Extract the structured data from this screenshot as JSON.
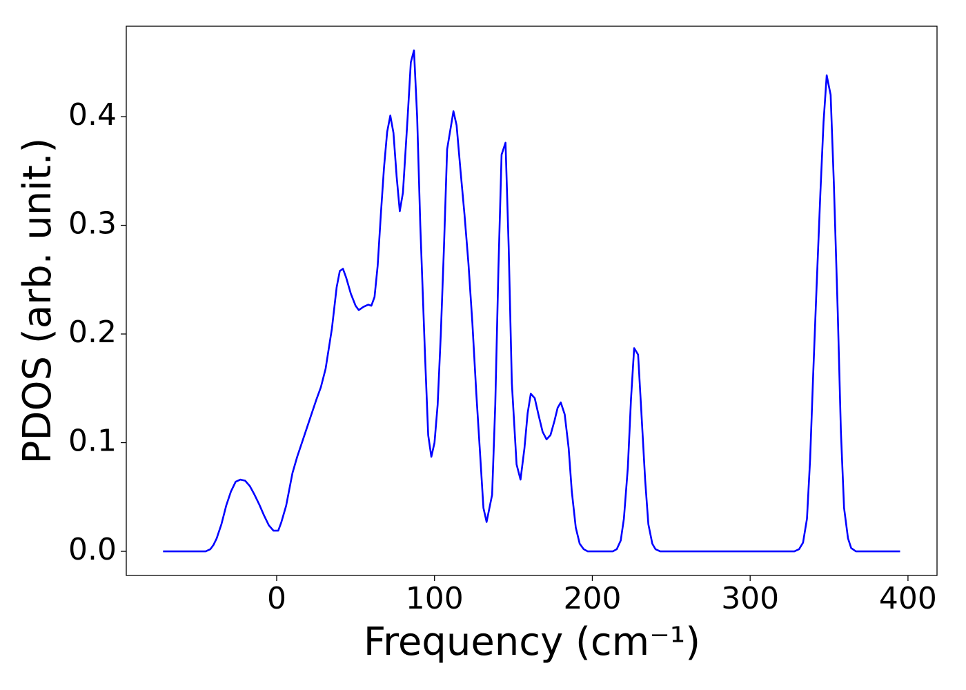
{
  "chart_data": {
    "type": "line",
    "xlabel": "Frequency (cm⁻¹)",
    "ylabel": "PDOS (arb. unit.)",
    "color": "#0000ff",
    "xlim": [
      -95.3,
      418.4
    ],
    "ylim": [
      -0.0222,
      0.4832
    ],
    "xticks": [
      0,
      100,
      200,
      300,
      400
    ],
    "yticks": [
      {
        "value": 0,
        "label": "0.0"
      },
      0.1,
      0.2,
      0.3,
      0.4
    ],
    "grid": false,
    "x": [
      -72,
      -45,
      -42,
      -40,
      -38,
      -35,
      -32,
      -29,
      -26,
      -23,
      -20,
      -17,
      -14,
      -11,
      -8,
      -5,
      -2,
      1,
      3,
      6,
      10,
      13,
      16,
      19,
      22,
      25,
      28,
      31,
      35,
      38,
      40,
      42,
      44,
      47,
      50,
      52,
      55,
      58,
      60,
      62,
      64,
      66,
      68,
      70,
      72,
      74,
      76,
      78,
      80,
      83,
      85,
      87,
      89,
      91,
      94,
      96,
      98,
      100,
      102,
      104,
      106,
      108,
      112,
      114,
      116.5,
      119,
      121.5,
      124,
      126.5,
      129,
      131,
      133,
      136.5,
      138.5,
      140.5,
      142.5,
      145,
      147,
      149,
      152,
      154.5,
      157,
      159,
      161,
      163.5,
      166,
      168.5,
      171,
      173.5,
      176,
      178,
      180,
      182.5,
      185,
      187,
      189.5,
      192,
      194.5,
      197,
      213,
      215.5,
      218,
      220,
      222.5,
      224.5,
      226.5,
      229,
      231,
      233.5,
      235.5,
      238,
      240,
      243,
      328,
      331,
      333.5,
      336,
      338,
      340,
      342,
      344.5,
      346.5,
      348.5,
      351,
      353,
      355.5,
      357.5,
      359.5,
      362,
      364,
      367,
      395
    ],
    "values": [
      0,
      0,
      0.002,
      0.006,
      0.012,
      0.025,
      0.042,
      0.055,
      0.064,
      0.066,
      0.065,
      0.06,
      0.052,
      0.043,
      0.033,
      0.024,
      0.019,
      0.019,
      0.027,
      0.042,
      0.072,
      0.087,
      0.1,
      0.113,
      0.126,
      0.139,
      0.151,
      0.168,
      0.205,
      0.243,
      0.258,
      0.26,
      0.252,
      0.237,
      0.226,
      0.222,
      0.225,
      0.227,
      0.226,
      0.234,
      0.263,
      0.31,
      0.353,
      0.386,
      0.401,
      0.385,
      0.345,
      0.313,
      0.33,
      0.4,
      0.45,
      0.461,
      0.4,
      0.3,
      0.18,
      0.107,
      0.087,
      0.1,
      0.135,
      0.2,
      0.28,
      0.37,
      0.405,
      0.392,
      0.35,
      0.31,
      0.265,
      0.21,
      0.145,
      0.087,
      0.04,
      0.027,
      0.052,
      0.135,
      0.26,
      0.365,
      0.376,
      0.28,
      0.155,
      0.08,
      0.066,
      0.095,
      0.127,
      0.145,
      0.141,
      0.125,
      0.11,
      0.103,
      0.107,
      0.12,
      0.132,
      0.137,
      0.126,
      0.095,
      0.055,
      0.022,
      0.007,
      0.002,
      0,
      0,
      0.002,
      0.01,
      0.03,
      0.077,
      0.14,
      0.187,
      0.181,
      0.13,
      0.065,
      0.025,
      0.007,
      0.002,
      0,
      0,
      0.002,
      0.008,
      0.03,
      0.085,
      0.165,
      0.24,
      0.33,
      0.395,
      0.438,
      0.42,
      0.34,
      0.22,
      0.11,
      0.04,
      0.012,
      0.003,
      0,
      0
    ]
  }
}
